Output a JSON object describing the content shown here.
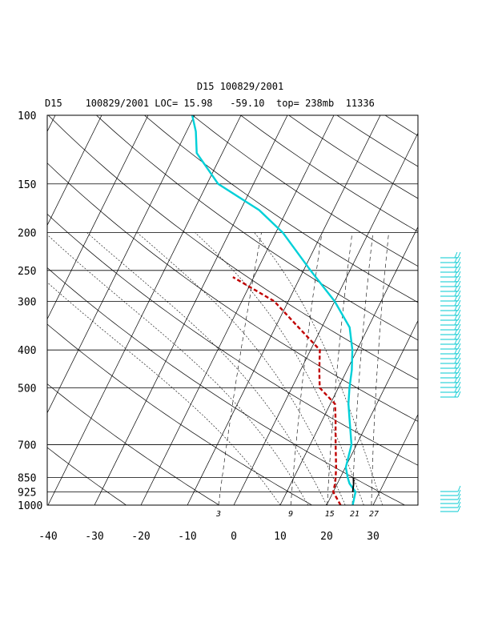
{
  "chart_data": {
    "type": "line",
    "title": "D15 100829/2001",
    "subtitle": "D15    100829/2001 LOC= 15.98   -59.10  top= 238mb  11336",
    "xlabel": "",
    "ylabel": "",
    "y_axis_scale": "log-pressure",
    "x_axis_skewed": true,
    "xlim": [
      -40,
      40
    ],
    "ylim": [
      1000,
      100
    ],
    "x_ticks": [
      "-40",
      "-30",
      "-20",
      "-10",
      "0",
      "10",
      "20",
      "30"
    ],
    "y_ticks": [
      "100",
      "150",
      "200",
      "250",
      "300",
      "400",
      "500",
      "700",
      "850",
      "925",
      "1000"
    ],
    "mixing_ratio_labels": [
      "3",
      "9",
      "15",
      "21",
      "27"
    ],
    "grid": true,
    "colors": {
      "temperature": "#00d0d8",
      "dewpoint": "#c00000",
      "parcel": "#000000",
      "grid": "#000000"
    },
    "series": [
      {
        "key": "temperature",
        "style": "solid",
        "points": [
          [
            1000,
            25.6
          ],
          [
            925,
            24.8
          ],
          [
            880,
            22.6
          ],
          [
            850,
            21.6
          ],
          [
            800,
            20.1
          ],
          [
            700,
            18.9
          ],
          [
            600,
            15.7
          ],
          [
            550,
            13.9
          ],
          [
            500,
            12.4
          ],
          [
            450,
            11.0
          ],
          [
            400,
            9.0
          ],
          [
            350,
            6.0
          ],
          [
            300,
            0.0
          ],
          [
            250,
            -8.5
          ],
          [
            200,
            -18.5
          ],
          [
            175,
            -26.0
          ],
          [
            150,
            -37.6
          ],
          [
            125,
            -45.5
          ],
          [
            110,
            -48.0
          ],
          [
            100,
            -50.5
          ]
        ]
      },
      {
        "key": "dewpoint",
        "style": "dashed",
        "points": [
          [
            1000,
            23.0
          ],
          [
            925,
            20.0
          ],
          [
            880,
            19.5
          ],
          [
            850,
            19.0
          ],
          [
            800,
            18.0
          ],
          [
            700,
            15.5
          ],
          [
            600,
            12.7
          ],
          [
            550,
            11.0
          ],
          [
            500,
            6.0
          ],
          [
            450,
            4.0
          ],
          [
            400,
            2.0
          ],
          [
            350,
            -5.0
          ],
          [
            300,
            -13.0
          ],
          [
            260,
            -24.5
          ]
        ]
      },
      {
        "key": "parcel",
        "style": "solid",
        "points": [
          [
            850,
            22.8
          ],
          [
            880,
            23.5
          ],
          [
            925,
            24.2
          ]
        ]
      }
    ]
  }
}
